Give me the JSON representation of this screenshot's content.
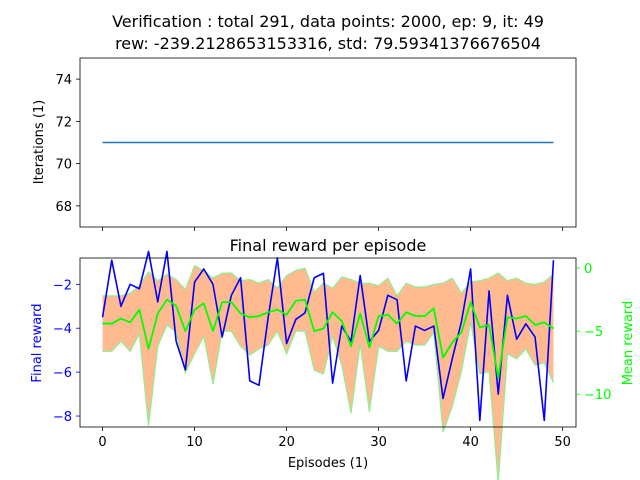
{
  "figure_title": [
    "Verification : total 291, data points: 2000, ep: 9, it: 49",
    "rew: -239.2128653153316, std: 79.59341376676504"
  ],
  "colors": {
    "iterations": "#1f77b4",
    "final_reward": "#0000ff",
    "mean_reward": "#00ff00",
    "std_band": "#ffa36b",
    "std_edge": "#90ee90"
  },
  "chart_data": [
    {
      "type": "line",
      "title": "",
      "xlabel": "",
      "ylabel": "Iterations (1)",
      "xlim": [
        -2.45,
        51.45
      ],
      "ylim": [
        67.0,
        75.0
      ],
      "xticks": [
        0,
        10,
        20,
        30,
        40,
        50
      ],
      "yticks": [
        68,
        70,
        72,
        74
      ],
      "series": [
        {
          "x": [
            0,
            49
          ],
          "y": [
            71,
            71
          ]
        }
      ]
    },
    {
      "type": "line",
      "title": "Final reward per episode",
      "xlabel": "Episodes (1)",
      "ylabel": "Final reward",
      "ylabel_right": "Mean reward",
      "xlim": [
        -2.45,
        51.45
      ],
      "ylim": [
        -8.5,
        -0.8
      ],
      "ylim_right": [
        -12.6,
        0.8
      ],
      "xticks": [
        0,
        10,
        20,
        30,
        40,
        50
      ],
      "yticks": [
        -2,
        -4,
        -6,
        -8
      ],
      "yticks_right": [
        0,
        -5,
        -10
      ],
      "x": [
        0,
        1,
        2,
        3,
        4,
        5,
        6,
        7,
        8,
        9,
        10,
        11,
        12,
        13,
        14,
        15,
        16,
        17,
        18,
        19,
        20,
        21,
        22,
        23,
        24,
        25,
        26,
        27,
        28,
        29,
        30,
        31,
        32,
        33,
        34,
        35,
        36,
        37,
        38,
        39,
        40,
        41,
        42,
        43,
        44,
        45,
        46,
        47,
        48,
        49
      ],
      "final_reward": [
        -3.5,
        -0.9,
        -3.0,
        -2.0,
        -2.2,
        -0.5,
        -2.8,
        -0.5,
        -4.6,
        -5.9,
        -1.9,
        -1.3,
        -2.0,
        -4.4,
        -2.5,
        -1.7,
        -6.4,
        -6.6,
        -3.5,
        -0.8,
        -4.7,
        -3.6,
        -3.3,
        -1.7,
        -1.5,
        -6.5,
        -3.9,
        -4.6,
        -1.6,
        -4.6,
        -4.1,
        -2.5,
        -2.7,
        -6.4,
        -3.9,
        -4.1,
        -3.9,
        -7.2,
        -5.4,
        -3.7,
        -1.3,
        -8.2,
        -2.3,
        -7.0,
        -2.5,
        -4.5,
        -3.8,
        -4.4,
        -8.2,
        -0.9
      ],
      "mean_reward": [
        -4.4,
        -4.4,
        -4.0,
        -4.3,
        -3.3,
        -6.4,
        -3.6,
        -2.5,
        -3.0,
        -5.0,
        -3.3,
        -2.8,
        -5.0,
        -2.7,
        -2.7,
        -3.6,
        -3.9,
        -3.8,
        -3.5,
        -3.3,
        -3.7,
        -2.6,
        -2.5,
        -5.0,
        -4.8,
        -3.5,
        -4.2,
        -6.2,
        -3.6,
        -6.3,
        -3.8,
        -3.7,
        -4.4,
        -3.5,
        -3.8,
        -3.8,
        -3.2,
        -7.1,
        -5.9,
        -5.1,
        -2.7,
        -4.7,
        -4.5,
        -8.7,
        -3.9,
        -4.0,
        -3.8,
        -4.5,
        -4.3,
        -4.8
      ],
      "std_upper": [
        -2.2,
        -2.2,
        -2.2,
        -2.0,
        -1.4,
        -0.3,
        -1.0,
        -0.5,
        -0.9,
        -1.7,
        0.2,
        -0.2,
        -0.8,
        -0.4,
        -0.4,
        -1.0,
        -0.9,
        -1.2,
        -0.9,
        -1.6,
        -0.6,
        -0.2,
        0.0,
        -1.9,
        -1.2,
        -1.6,
        -0.7,
        -0.9,
        -1.2,
        -1.2,
        -1.4,
        -0.8,
        -2.2,
        -1.2,
        -1.5,
        -1.5,
        -1.3,
        -1.2,
        -0.8,
        -2.0,
        -1.1,
        -1.0,
        -0.8,
        -0.4,
        -1.0,
        -0.8,
        -1.2,
        -1.3,
        -1.1,
        -0.5
      ]
    }
  ]
}
